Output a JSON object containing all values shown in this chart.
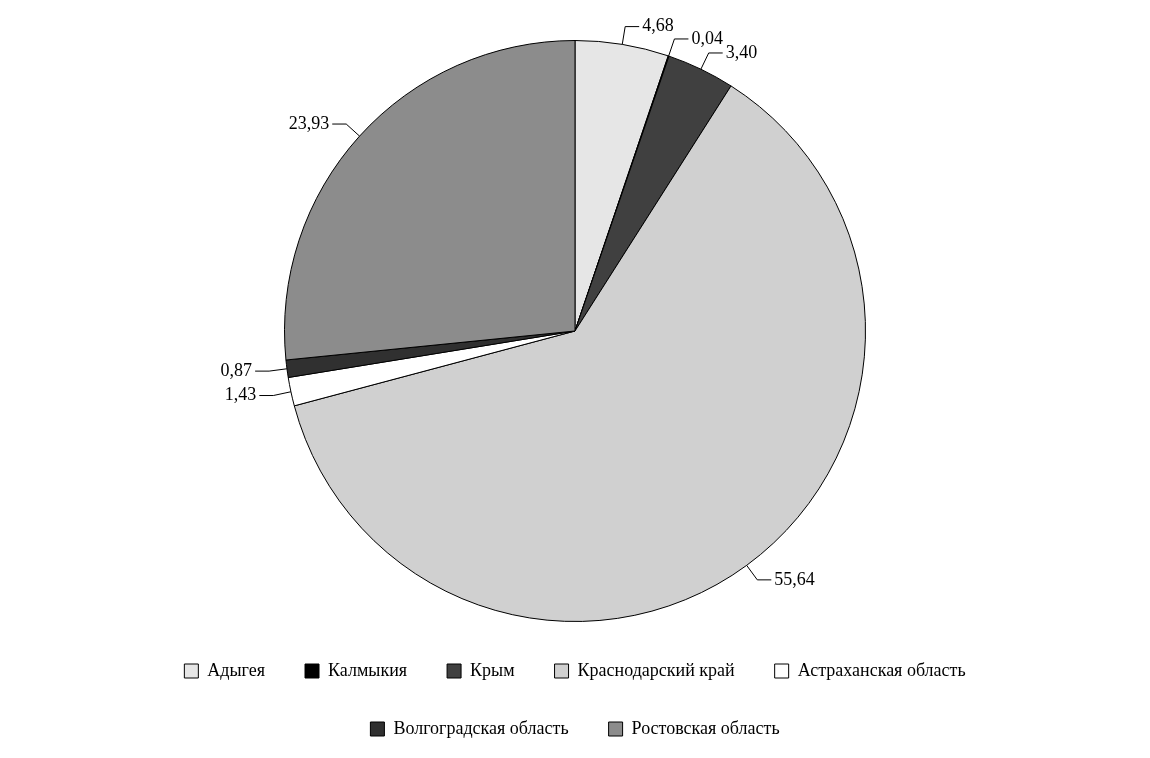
{
  "chart_data": {
    "type": "pie",
    "categories": [
      "Адыгея",
      "Калмыкия",
      "Крым",
      "Краснодарский край",
      "Астраханская область",
      "Волгоградская область",
      "Ростовская область"
    ],
    "values": [
      4.68,
      0.04,
      3.4,
      55.64,
      1.43,
      0.87,
      23.93
    ],
    "value_labels": [
      "4,68",
      "0,04",
      "3,40",
      "55,64",
      "1,43",
      "0,87",
      "23,93"
    ],
    "colors": [
      "#e6e6e6",
      "#000000",
      "#404040",
      "#d0d0d0",
      "#ffffff",
      "#303030",
      "#8c8c8c"
    ],
    "legend": "bottom"
  }
}
